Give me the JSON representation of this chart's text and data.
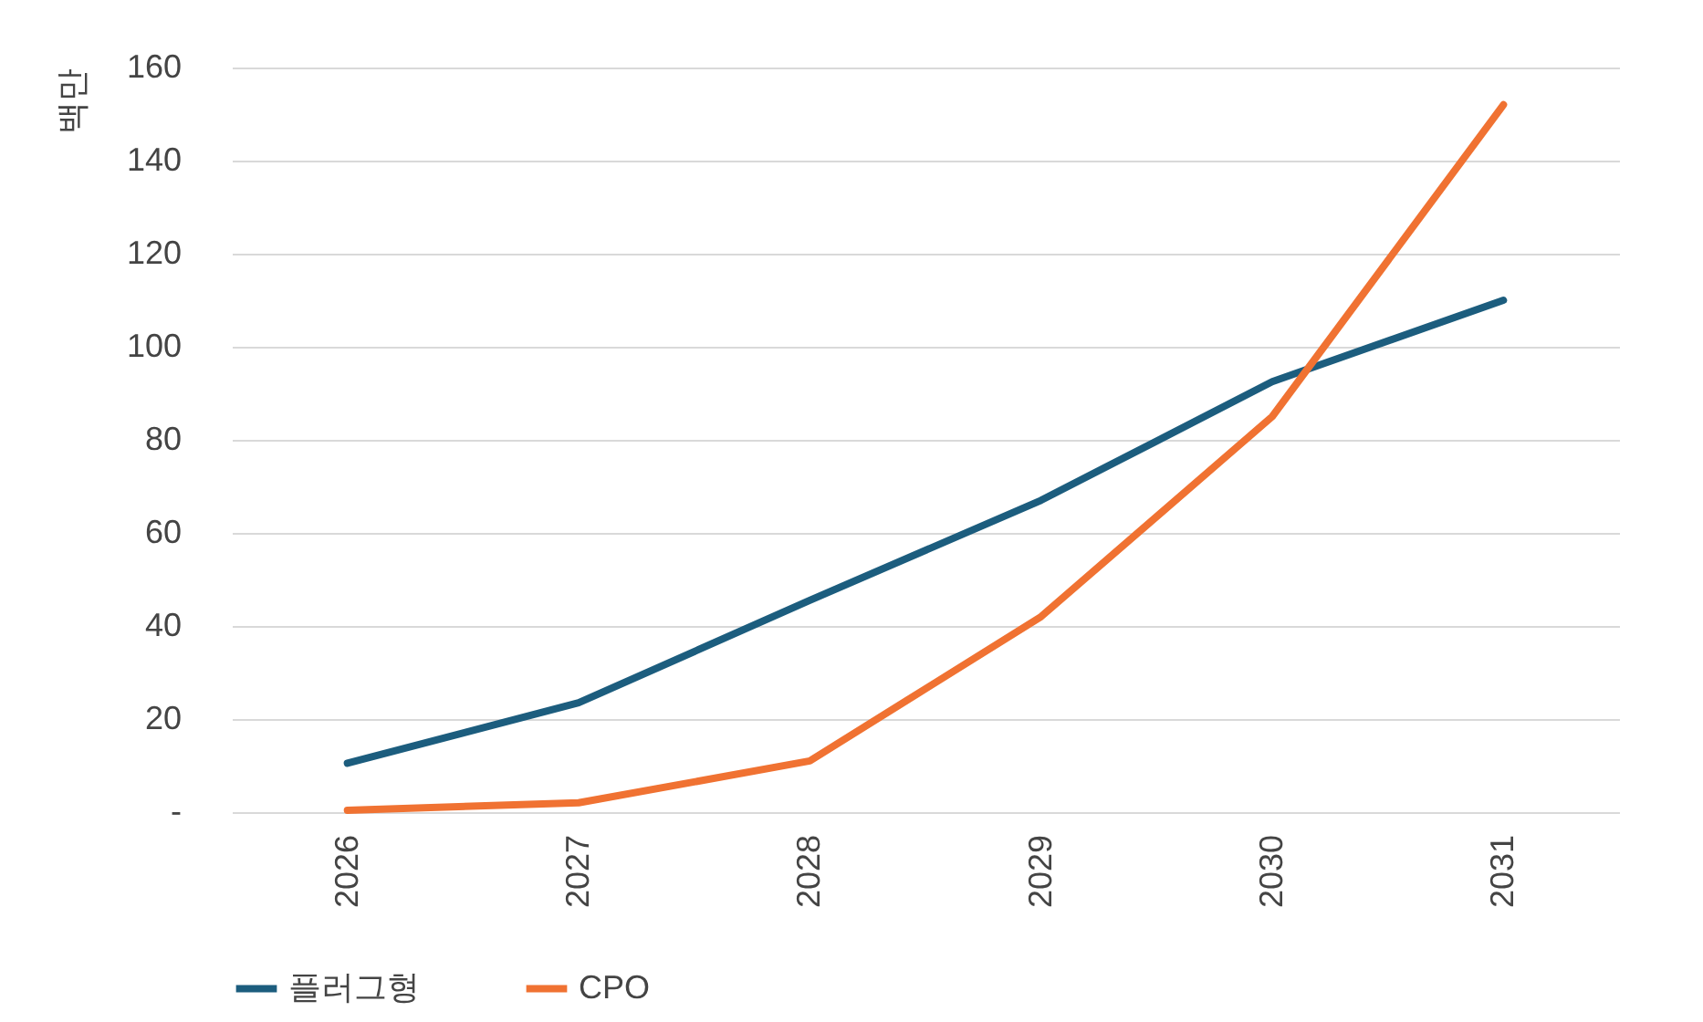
{
  "chart_data": {
    "type": "line",
    "ylabel": "백만",
    "categories": [
      "2026",
      "2027",
      "2028",
      "2029",
      "2030",
      "2031"
    ],
    "series": [
      {
        "name": "플러그형",
        "color": "#1c5d7e",
        "values": [
          10.5,
          23.5,
          45.5,
          67,
          92.5,
          110
        ]
      },
      {
        "name": "CPO",
        "color": "#f07232",
        "values": [
          0.4,
          2,
          11,
          42,
          85,
          152
        ]
      }
    ],
    "ylim": [
      0,
      160
    ],
    "yticks": [
      {
        "value": 0,
        "label": "-"
      },
      20,
      40,
      60,
      80,
      100,
      120,
      140,
      160
    ],
    "grid": "y",
    "legend": "bottom",
    "marker": "none",
    "line_style": "solid"
  }
}
